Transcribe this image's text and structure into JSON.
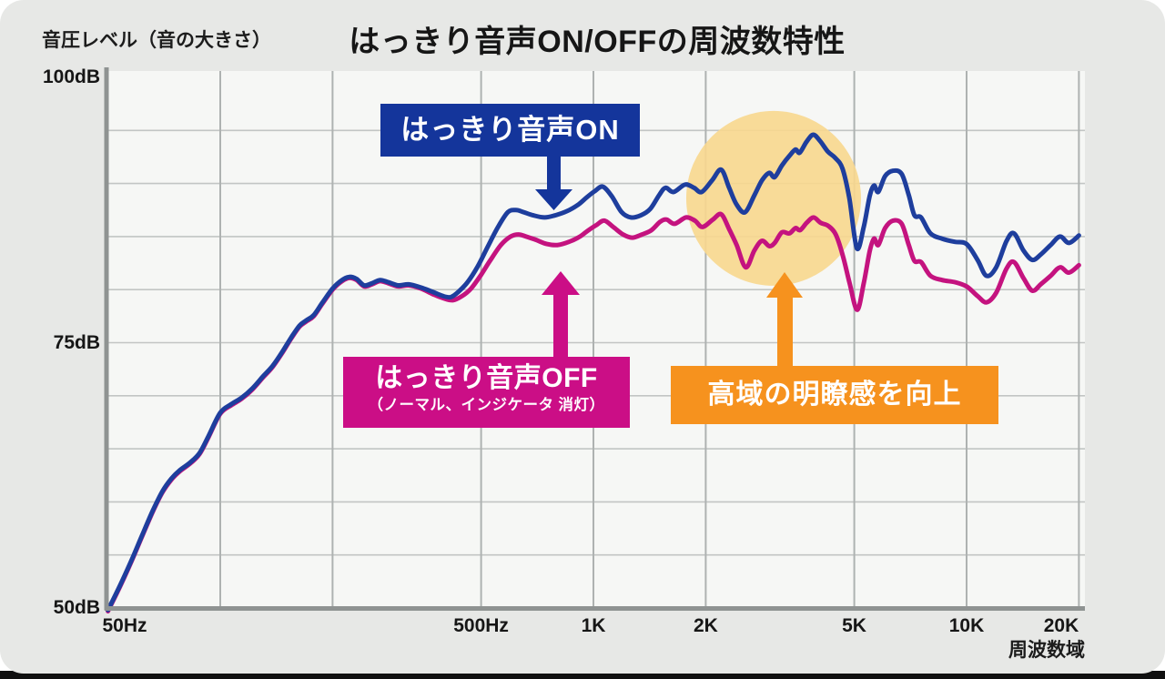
{
  "title": "はっきり音声ON/OFFの周波数特性",
  "axis": {
    "y_label": "音圧レベル（音の大きさ）",
    "x_label": "周波数域",
    "y_ticks": [
      "100dB",
      "75dB",
      "50dB"
    ],
    "x_ticks": [
      "50Hz",
      "500Hz",
      "1K",
      "2K",
      "5K",
      "10K",
      "20K"
    ]
  },
  "callouts": {
    "on": {
      "label": "はっきり音声ON",
      "color": "#14359b"
    },
    "off": {
      "label": "はっきり音声OFF",
      "sublabel": "（ノーマル、インジケータ 消灯）",
      "color": "#cb0e86"
    },
    "highlight": {
      "label": "高域の明瞭感を向上",
      "color": "#f6921e",
      "circle_color": "#f8d78e"
    }
  },
  "colors": {
    "card_bg": "#e7e8e6",
    "plot_bg": "#f6f7f5",
    "grid_h": "#c2c5c4",
    "grid_v": "#aeb2b1",
    "axis": "#8f9392",
    "on_line": "#1e3e9d",
    "off_line": "#c4137f",
    "bottom_bar": "#101010"
  },
  "chart_data": {
    "type": "line",
    "title": "はっきり音声ON/OFFの周波数特性",
    "xlabel": "周波数域",
    "ylabel": "音圧レベル（音の大きさ）",
    "x_scale": "log",
    "x_range_hz": [
      50,
      20000
    ],
    "y_range_db": [
      50,
      100
    ],
    "x_tick_hz": [
      50,
      500,
      1000,
      2000,
      5000,
      10000,
      20000
    ],
    "y_tick_db": [
      100,
      75,
      50
    ],
    "grid_x_hz": [
      100,
      200,
      500,
      1000,
      2000,
      5000,
      10000,
      20000
    ],
    "grid_y_db_step": 5,
    "legend_position": "inline-callouts",
    "highlight_region": {
      "center_hz": 3040,
      "center_db": 88.6,
      "label": "高域の明瞭感を向上"
    },
    "series": [
      {
        "name": "はっきり音声ON",
        "color": "#1e3e9d",
        "points": [
          [
            50,
            49.8
          ],
          [
            54,
            52.2
          ],
          [
            58,
            54.6
          ],
          [
            62,
            57.0
          ],
          [
            66,
            59.2
          ],
          [
            70,
            61.0
          ],
          [
            74,
            62.2
          ],
          [
            78,
            63.0
          ],
          [
            83,
            63.7
          ],
          [
            88,
            64.6
          ],
          [
            93,
            66.2
          ],
          [
            100,
            68.4
          ],
          [
            107,
            69.2
          ],
          [
            114,
            69.8
          ],
          [
            122,
            70.7
          ],
          [
            130,
            71.8
          ],
          [
            138,
            72.8
          ],
          [
            147,
            74.2
          ],
          [
            155,
            75.5
          ],
          [
            163,
            76.6
          ],
          [
            170,
            77.1
          ],
          [
            178,
            77.6
          ],
          [
            188,
            78.8
          ],
          [
            200,
            80.1
          ],
          [
            212,
            80.9
          ],
          [
            222,
            81.2
          ],
          [
            232,
            81.0
          ],
          [
            243,
            80.4
          ],
          [
            255,
            80.6
          ],
          [
            268,
            80.9
          ],
          [
            282,
            80.7
          ],
          [
            300,
            80.4
          ],
          [
            320,
            80.5
          ],
          [
            345,
            80.2
          ],
          [
            370,
            79.8
          ],
          [
            395,
            79.4
          ],
          [
            415,
            79.3
          ],
          [
            435,
            79.8
          ],
          [
            460,
            80.7
          ],
          [
            490,
            82.2
          ],
          [
            520,
            84.0
          ],
          [
            555,
            85.9
          ],
          [
            590,
            87.3
          ],
          [
            620,
            87.5
          ],
          [
            650,
            87.3
          ],
          [
            690,
            87.0
          ],
          [
            740,
            86.8
          ],
          [
            790,
            87.0
          ],
          [
            850,
            87.4
          ],
          [
            910,
            88.0
          ],
          [
            960,
            88.7
          ],
          [
            1010,
            89.3
          ],
          [
            1060,
            89.7
          ],
          [
            1120,
            88.8
          ],
          [
            1190,
            87.3
          ],
          [
            1260,
            86.8
          ],
          [
            1340,
            87.0
          ],
          [
            1420,
            87.6
          ],
          [
            1500,
            88.9
          ],
          [
            1560,
            89.6
          ],
          [
            1640,
            89.2
          ],
          [
            1760,
            89.9
          ],
          [
            1860,
            89.6
          ],
          [
            1950,
            89.2
          ],
          [
            2080,
            90.3
          ],
          [
            2200,
            91.3
          ],
          [
            2310,
            89.6
          ],
          [
            2420,
            88.0
          ],
          [
            2550,
            87.3
          ],
          [
            2700,
            88.9
          ],
          [
            2830,
            90.3
          ],
          [
            2960,
            91.0
          ],
          [
            3060,
            90.6
          ],
          [
            3200,
            91.7
          ],
          [
            3350,
            92.6
          ],
          [
            3480,
            93.2
          ],
          [
            3570,
            92.9
          ],
          [
            3720,
            93.9
          ],
          [
            3880,
            94.6
          ],
          [
            4050,
            94.0
          ],
          [
            4250,
            93.0
          ],
          [
            4450,
            92.4
          ],
          [
            4650,
            91.4
          ],
          [
            4850,
            88.6
          ],
          [
            5080,
            83.9
          ],
          [
            5300,
            85.9
          ],
          [
            5500,
            88.8
          ],
          [
            5650,
            89.8
          ],
          [
            5800,
            89.2
          ],
          [
            6050,
            90.7
          ],
          [
            6350,
            91.2
          ],
          [
            6700,
            90.9
          ],
          [
            7000,
            88.9
          ],
          [
            7250,
            87.0
          ],
          [
            7550,
            86.8
          ],
          [
            8000,
            85.3
          ],
          [
            8600,
            84.8
          ],
          [
            9300,
            84.5
          ],
          [
            10000,
            84.3
          ],
          [
            10700,
            82.8
          ],
          [
            11300,
            81.3
          ],
          [
            12000,
            82.1
          ],
          [
            12800,
            84.6
          ],
          [
            13400,
            85.3
          ],
          [
            14200,
            83.7
          ],
          [
            15000,
            82.8
          ],
          [
            15800,
            83.3
          ],
          [
            16800,
            84.2
          ],
          [
            17800,
            85.0
          ],
          [
            18800,
            84.4
          ],
          [
            20000,
            85.1
          ]
        ]
      },
      {
        "name": "はっきり音声OFF（ノーマル、インジケータ 消灯）",
        "color": "#c4137f",
        "points": [
          [
            50,
            49.7
          ],
          [
            54,
            52.1
          ],
          [
            58,
            54.5
          ],
          [
            62,
            56.9
          ],
          [
            66,
            59.1
          ],
          [
            70,
            60.9
          ],
          [
            74,
            62.1
          ],
          [
            78,
            62.9
          ],
          [
            83,
            63.6
          ],
          [
            88,
            64.5
          ],
          [
            93,
            66.1
          ],
          [
            100,
            68.3
          ],
          [
            107,
            69.1
          ],
          [
            114,
            69.7
          ],
          [
            122,
            70.6
          ],
          [
            130,
            71.7
          ],
          [
            138,
            72.7
          ],
          [
            147,
            74.1
          ],
          [
            155,
            75.4
          ],
          [
            163,
            76.5
          ],
          [
            170,
            77.0
          ],
          [
            178,
            77.5
          ],
          [
            188,
            78.7
          ],
          [
            200,
            80.0
          ],
          [
            212,
            80.8
          ],
          [
            222,
            81.1
          ],
          [
            232,
            80.9
          ],
          [
            243,
            80.3
          ],
          [
            255,
            80.5
          ],
          [
            268,
            80.8
          ],
          [
            282,
            80.6
          ],
          [
            300,
            80.3
          ],
          [
            320,
            80.4
          ],
          [
            345,
            80.1
          ],
          [
            370,
            79.6
          ],
          [
            395,
            79.2
          ],
          [
            420,
            79.0
          ],
          [
            445,
            79.4
          ],
          [
            470,
            80.1
          ],
          [
            500,
            81.4
          ],
          [
            530,
            82.8
          ],
          [
            565,
            84.2
          ],
          [
            600,
            85.0
          ],
          [
            630,
            85.2
          ],
          [
            660,
            85.0
          ],
          [
            700,
            84.7
          ],
          [
            750,
            84.3
          ],
          [
            800,
            84.2
          ],
          [
            860,
            84.5
          ],
          [
            920,
            85.0
          ],
          [
            970,
            85.6
          ],
          [
            1020,
            86.1
          ],
          [
            1070,
            86.5
          ],
          [
            1130,
            85.9
          ],
          [
            1200,
            85.2
          ],
          [
            1270,
            84.9
          ],
          [
            1350,
            85.2
          ],
          [
            1430,
            85.6
          ],
          [
            1510,
            86.4
          ],
          [
            1570,
            86.6
          ],
          [
            1650,
            86.2
          ],
          [
            1770,
            86.8
          ],
          [
            1870,
            86.5
          ],
          [
            1960,
            85.9
          ],
          [
            2090,
            86.6
          ],
          [
            2200,
            87.1
          ],
          [
            2310,
            85.7
          ],
          [
            2420,
            84.2
          ],
          [
            2560,
            82.1
          ],
          [
            2700,
            83.7
          ],
          [
            2830,
            84.6
          ],
          [
            2960,
            84.1
          ],
          [
            3060,
            84.4
          ],
          [
            3200,
            85.4
          ],
          [
            3350,
            85.3
          ],
          [
            3480,
            85.8
          ],
          [
            3580,
            85.6
          ],
          [
            3730,
            86.3
          ],
          [
            3890,
            86.8
          ],
          [
            4060,
            86.3
          ],
          [
            4260,
            86.0
          ],
          [
            4460,
            85.2
          ],
          [
            4660,
            83.2
          ],
          [
            4860,
            80.6
          ],
          [
            5090,
            78.1
          ],
          [
            5300,
            80.6
          ],
          [
            5500,
            83.6
          ],
          [
            5650,
            84.8
          ],
          [
            5800,
            84.2
          ],
          [
            6050,
            85.8
          ],
          [
            6350,
            86.5
          ],
          [
            6700,
            86.2
          ],
          [
            7000,
            84.2
          ],
          [
            7250,
            82.7
          ],
          [
            7550,
            82.6
          ],
          [
            8000,
            81.3
          ],
          [
            8600,
            80.9
          ],
          [
            9300,
            80.7
          ],
          [
            10000,
            80.3
          ],
          [
            10700,
            79.4
          ],
          [
            11300,
            78.8
          ],
          [
            12000,
            79.7
          ],
          [
            12800,
            82.0
          ],
          [
            13400,
            82.6
          ],
          [
            14200,
            81.1
          ],
          [
            15000,
            79.9
          ],
          [
            15800,
            80.5
          ],
          [
            16800,
            81.3
          ],
          [
            17800,
            82.1
          ],
          [
            18800,
            81.6
          ],
          [
            20000,
            82.3
          ]
        ]
      }
    ]
  }
}
